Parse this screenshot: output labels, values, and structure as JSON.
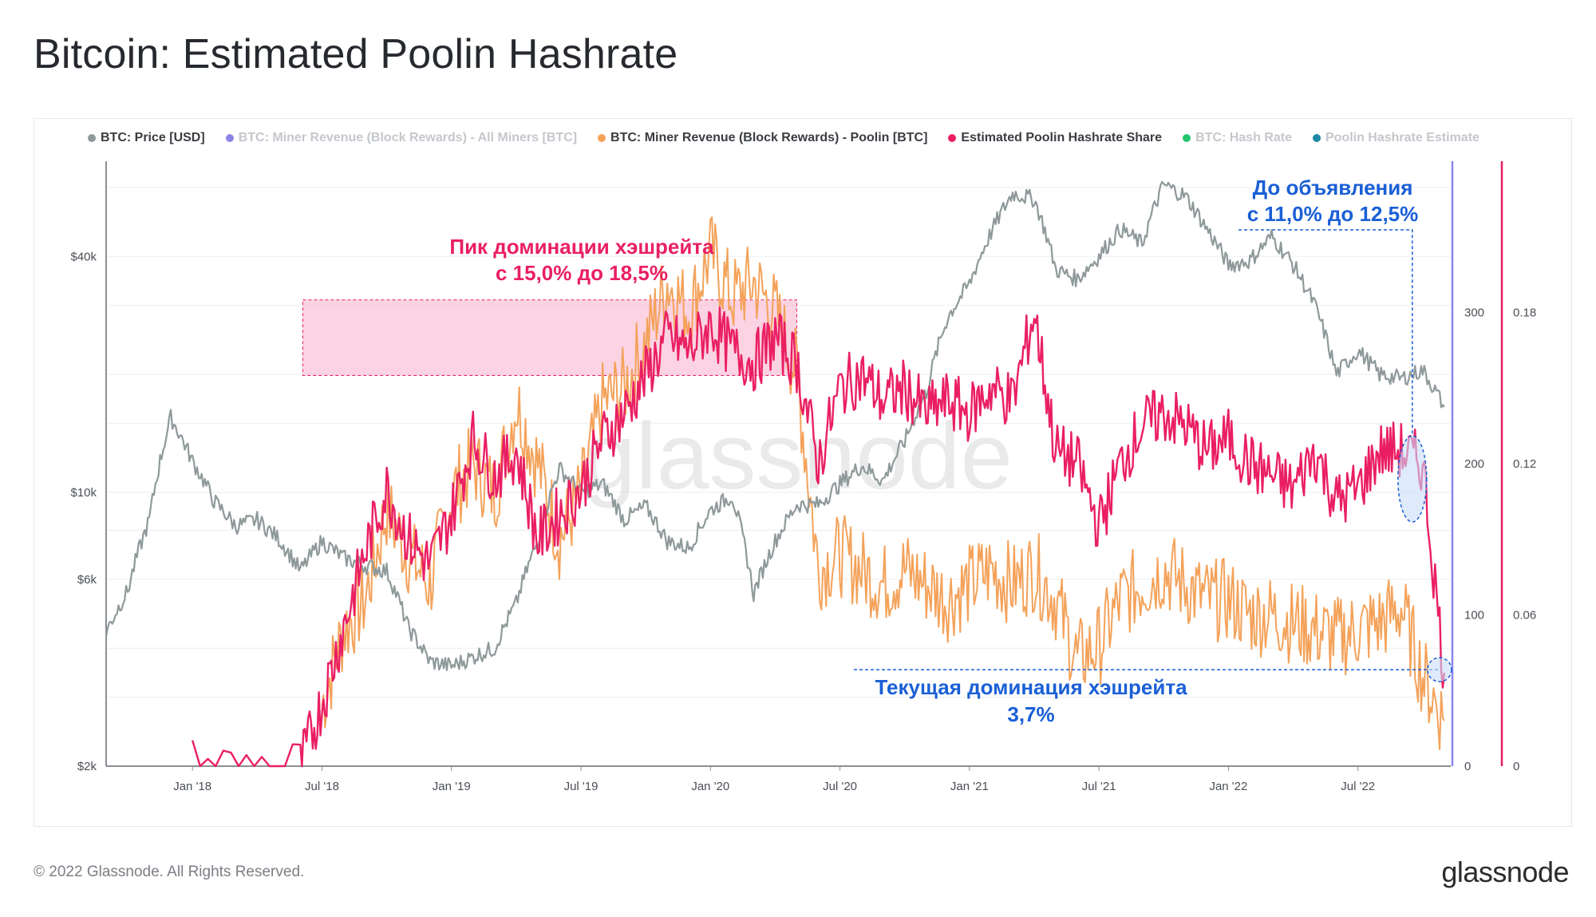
{
  "page": {
    "title": "Bitcoin: Estimated Poolin Hashrate",
    "copyright": "© 2022 Glassnode. All Rights Reserved.",
    "brand": "glassnode",
    "watermark": "glassnode"
  },
  "chart_data": {
    "type": "line",
    "title": "Bitcoin: Estimated Poolin Hashrate",
    "legend": [
      {
        "name": "BTC: Price [USD]",
        "color": "#8e999a",
        "active": true
      },
      {
        "name": "BTC: Miner Revenue (Block Rewards) - All Miners [BTC]",
        "color": "#8c85e8",
        "active": false
      },
      {
        "name": "BTC: Miner Revenue (Block Rewards) - Poolin [BTC]",
        "color": "#f4a25a",
        "active": true
      },
      {
        "name": "Estimated Poolin Hashrate Share",
        "color": "#ea1f63",
        "active": true
      },
      {
        "name": "BTC: Hash Rate",
        "color": "#22c46e",
        "active": false
      },
      {
        "name": "Poolin Hashrate Estimate",
        "color": "#1d8aa6",
        "active": false
      }
    ],
    "x_ticks": [
      "Jan '18",
      "Jul '18",
      "Jan '19",
      "Jul '19",
      "Jan '20",
      "Jul '20",
      "Jan '21",
      "Jul '21",
      "Jan '22",
      "Jul '22"
    ],
    "x_range": [
      "2017-09",
      "2022-11"
    ],
    "y_left": {
      "scale": "log",
      "ticks": [
        "$2k",
        "$6k",
        "$10k",
        "$40k"
      ],
      "values": [
        2000,
        6000,
        10000,
        40000
      ],
      "range": [
        2000,
        70000
      ]
    },
    "y_right1": {
      "ticks": [
        "0",
        "100",
        "200",
        "300"
      ],
      "values": [
        0,
        100,
        200,
        300
      ],
      "range": [
        0,
        400
      ],
      "color": "#8c85e8"
    },
    "y_right2": {
      "ticks": [
        "0",
        "0.06",
        "0.12",
        "0.18"
      ],
      "values": [
        0,
        0.06,
        0.12,
        0.18
      ],
      "range": [
        0,
        0.24
      ],
      "color": "#ea1f63"
    },
    "series": [
      {
        "name": "BTC: Price [USD]",
        "axis": "left",
        "color": "#8e999a",
        "points": [
          [
            "2017-09",
            4400
          ],
          [
            "2017-10",
            5600
          ],
          [
            "2017-11",
            8500
          ],
          [
            "2017-12",
            15500
          ],
          [
            "2018-01",
            12000
          ],
          [
            "2018-02",
            9500
          ],
          [
            "2018-03",
            8200
          ],
          [
            "2018-04",
            8500
          ],
          [
            "2018-05",
            7600
          ],
          [
            "2018-06",
            6300
          ],
          [
            "2018-07",
            7500
          ],
          [
            "2018-08",
            6800
          ],
          [
            "2018-09",
            6500
          ],
          [
            "2018-10",
            6300
          ],
          [
            "2018-11",
            4500
          ],
          [
            "2018-12",
            3700
          ],
          [
            "2019-01",
            3600
          ],
          [
            "2019-02",
            3800
          ],
          [
            "2019-03",
            4000
          ],
          [
            "2019-04",
            5200
          ],
          [
            "2019-05",
            7500
          ],
          [
            "2019-06",
            11500
          ],
          [
            "2019-07",
            10000
          ],
          [
            "2019-08",
            10500
          ],
          [
            "2019-09",
            8500
          ],
          [
            "2019-10",
            9200
          ],
          [
            "2019-11",
            7500
          ],
          [
            "2019-12",
            7200
          ],
          [
            "2020-01",
            9000
          ],
          [
            "2020-02",
            9800
          ],
          [
            "2020-03",
            5500
          ],
          [
            "2020-04",
            7500
          ],
          [
            "2020-05",
            9300
          ],
          [
            "2020-06",
            9300
          ],
          [
            "2020-07",
            10500
          ],
          [
            "2020-08",
            11700
          ],
          [
            "2020-09",
            10700
          ],
          [
            "2020-10",
            13500
          ],
          [
            "2020-11",
            18000
          ],
          [
            "2020-12",
            28000
          ],
          [
            "2021-01",
            34000
          ],
          [
            "2021-02",
            46000
          ],
          [
            "2021-03",
            58000
          ],
          [
            "2021-04",
            56000
          ],
          [
            "2021-05",
            37000
          ],
          [
            "2021-06",
            35000
          ],
          [
            "2021-07",
            40000
          ],
          [
            "2021-08",
            47000
          ],
          [
            "2021-09",
            43000
          ],
          [
            "2021-10",
            61000
          ],
          [
            "2021-11",
            57000
          ],
          [
            "2021-12",
            47000
          ],
          [
            "2022-01",
            38000
          ],
          [
            "2022-02",
            39000
          ],
          [
            "2022-03",
            45000
          ],
          [
            "2022-04",
            38000
          ],
          [
            "2022-05",
            30000
          ],
          [
            "2022-06",
            20000
          ],
          [
            "2022-07",
            23000
          ],
          [
            "2022-08",
            20000
          ],
          [
            "2022-09",
            19500
          ],
          [
            "2022-10",
            20500
          ],
          [
            "2022-11",
            16500
          ]
        ]
      },
      {
        "name": "BTC: Miner Revenue (Block Rewards) - Poolin [BTC]",
        "axis": "right1",
        "color": "#f4a25a",
        "points": [
          [
            "2018-07",
            40
          ],
          [
            "2018-08",
            90
          ],
          [
            "2018-09",
            110
          ],
          [
            "2018-10",
            170
          ],
          [
            "2018-11",
            140
          ],
          [
            "2018-12",
            120
          ],
          [
            "2019-01",
            180
          ],
          [
            "2019-02",
            200
          ],
          [
            "2019-03",
            180
          ],
          [
            "2019-04",
            240
          ],
          [
            "2019-05",
            200
          ],
          [
            "2019-06",
            150
          ],
          [
            "2019-07",
            180
          ],
          [
            "2019-08",
            240
          ],
          [
            "2019-09",
            250
          ],
          [
            "2019-10",
            280
          ],
          [
            "2019-11",
            320
          ],
          [
            "2019-12",
            300
          ],
          [
            "2020-01",
            340
          ],
          [
            "2020-02",
            310
          ],
          [
            "2020-03",
            320
          ],
          [
            "2020-04",
            300
          ],
          [
            "2020-05",
            260
          ],
          [
            "2020-06",
            130
          ],
          [
            "2020-07",
            140
          ],
          [
            "2020-08",
            130
          ],
          [
            "2020-09",
            120
          ],
          [
            "2020-10",
            130
          ],
          [
            "2020-11",
            120
          ],
          [
            "2020-12",
            110
          ],
          [
            "2021-01",
            120
          ],
          [
            "2021-02",
            130
          ],
          [
            "2021-03",
            120
          ],
          [
            "2021-04",
            130
          ],
          [
            "2021-05",
            110
          ],
          [
            "2021-06",
            70
          ],
          [
            "2021-07",
            80
          ],
          [
            "2021-08",
            110
          ],
          [
            "2021-09",
            120
          ],
          [
            "2021-10",
            130
          ],
          [
            "2021-11",
            120
          ],
          [
            "2021-12",
            110
          ],
          [
            "2022-01",
            110
          ],
          [
            "2022-02",
            100
          ],
          [
            "2022-03",
            100
          ],
          [
            "2022-04",
            95
          ],
          [
            "2022-05",
            90
          ],
          [
            "2022-06",
            85
          ],
          [
            "2022-07",
            90
          ],
          [
            "2022-08",
            95
          ],
          [
            "2022-09",
            105
          ],
          [
            "2022-10",
            60
          ],
          [
            "2022-11",
            30
          ]
        ]
      },
      {
        "name": "Estimated Poolin Hashrate Share",
        "axis": "right2",
        "color": "#ea1f63",
        "points": [
          [
            "2018-01",
            0
          ],
          [
            "2018-06",
            0
          ],
          [
            "2018-07",
            0.025
          ],
          [
            "2018-08",
            0.055
          ],
          [
            "2018-09",
            0.085
          ],
          [
            "2018-10",
            0.11
          ],
          [
            "2018-11",
            0.09
          ],
          [
            "2018-12",
            0.08
          ],
          [
            "2019-01",
            0.1
          ],
          [
            "2019-02",
            0.13
          ],
          [
            "2019-03",
            0.115
          ],
          [
            "2019-04",
            0.125
          ],
          [
            "2019-05",
            0.09
          ],
          [
            "2019-06",
            0.1
          ],
          [
            "2019-07",
            0.11
          ],
          [
            "2019-08",
            0.13
          ],
          [
            "2019-09",
            0.14
          ],
          [
            "2019-10",
            0.155
          ],
          [
            "2019-11",
            0.17
          ],
          [
            "2019-12",
            0.165
          ],
          [
            "2020-01",
            0.175
          ],
          [
            "2020-02",
            0.165
          ],
          [
            "2020-03",
            0.16
          ],
          [
            "2020-04",
            0.17
          ],
          [
            "2020-05",
            0.16
          ],
          [
            "2020-06",
            0.12
          ],
          [
            "2020-07",
            0.15
          ],
          [
            "2020-08",
            0.155
          ],
          [
            "2020-09",
            0.145
          ],
          [
            "2020-10",
            0.15
          ],
          [
            "2020-11",
            0.14
          ],
          [
            "2020-12",
            0.145
          ],
          [
            "2021-01",
            0.14
          ],
          [
            "2021-02",
            0.15
          ],
          [
            "2021-03",
            0.145
          ],
          [
            "2021-04",
            0.18
          ],
          [
            "2021-05",
            0.125
          ],
          [
            "2021-06",
            0.12
          ],
          [
            "2021-07",
            0.095
          ],
          [
            "2021-08",
            0.12
          ],
          [
            "2021-09",
            0.135
          ],
          [
            "2021-10",
            0.14
          ],
          [
            "2021-11",
            0.135
          ],
          [
            "2021-12",
            0.125
          ],
          [
            "2022-01",
            0.13
          ],
          [
            "2022-02",
            0.12
          ],
          [
            "2022-03",
            0.115
          ],
          [
            "2022-04",
            0.11
          ],
          [
            "2022-05",
            0.125
          ],
          [
            "2022-06",
            0.105
          ],
          [
            "2022-07",
            0.11
          ],
          [
            "2022-08",
            0.125
          ],
          [
            "2022-09",
            0.125
          ],
          [
            "2022-10",
            0.12
          ],
          [
            "2022-11",
            0.037
          ]
        ]
      }
    ],
    "annotations": [
      {
        "id": "peak",
        "line1": "Пик доминации хэшрейта",
        "line2": "с 15,0% до 18,5%",
        "color": "#ea1f63",
        "from": "2018-07",
        "to": "2020-05",
        "y_low": 0.155,
        "y_high": 0.185
      },
      {
        "id": "before",
        "line1": "До объявления",
        "line2": "с 11,0% до 12,5%",
        "color": "#1a5fd6",
        "at": "2022-09"
      },
      {
        "id": "current",
        "line1": "Текущая доминация хэшрейта",
        "line2": "3,7%",
        "color": "#1a5fd6",
        "at": "2022-11",
        "value": 0.037
      }
    ]
  }
}
